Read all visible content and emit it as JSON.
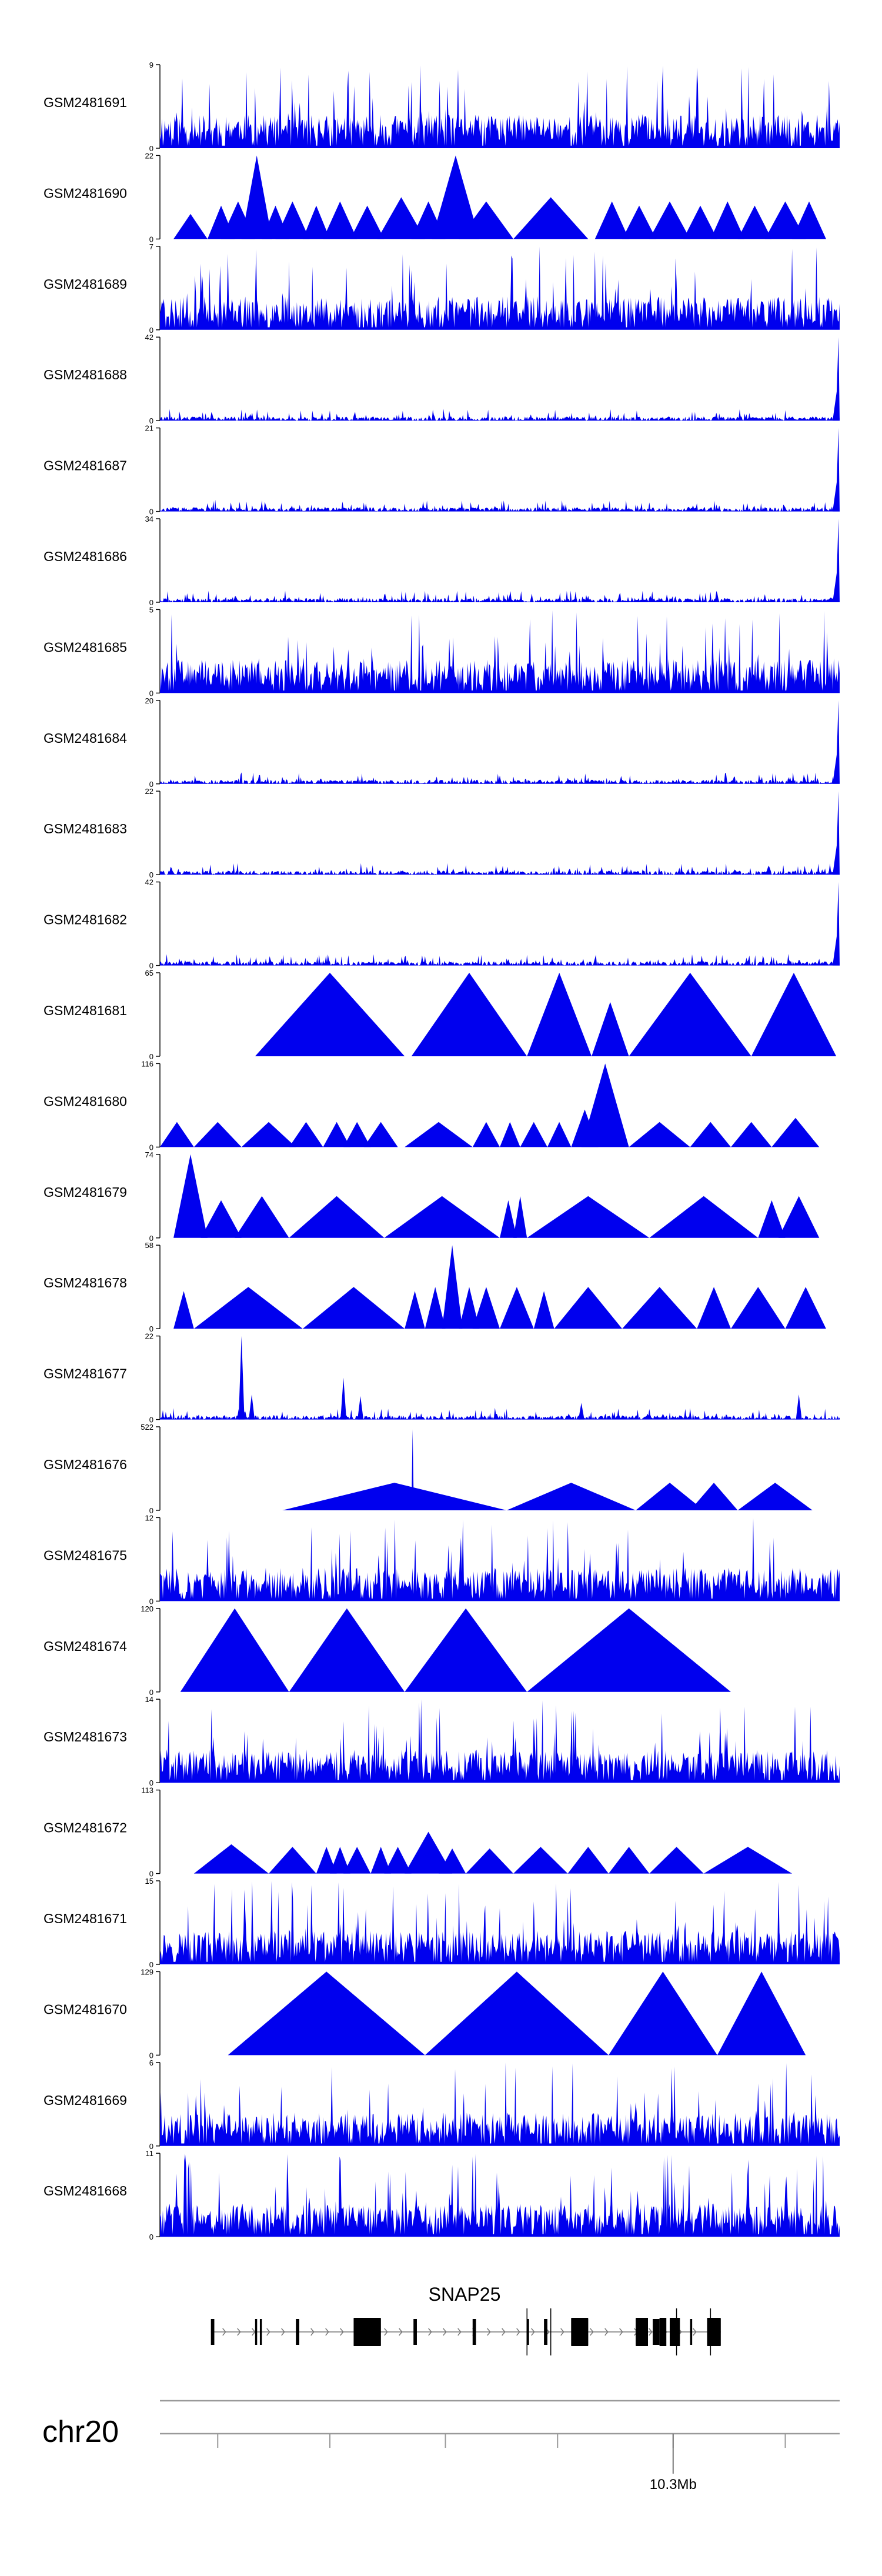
{
  "chart_data": {
    "type": "area",
    "title": "",
    "chromosome": "chr20",
    "fill_color": "#0000ee",
    "tracks": [
      {
        "name": "GSM2481691",
        "ymax": 9,
        "style": "dense",
        "seed": 11,
        "spike": null
      },
      {
        "name": "GSM2481690",
        "ymax": 22,
        "style": "sparse",
        "peaks": [
          [
            0.02,
            0.07,
            0.3
          ],
          [
            0.07,
            0.11,
            0.4
          ],
          [
            0.09,
            0.14,
            0.45
          ],
          [
            0.12,
            0.165,
            1.0
          ],
          [
            0.15,
            0.19,
            0.4
          ],
          [
            0.17,
            0.22,
            0.45
          ],
          [
            0.21,
            0.25,
            0.4
          ],
          [
            0.24,
            0.29,
            0.45
          ],
          [
            0.28,
            0.33,
            0.4
          ],
          [
            0.32,
            0.39,
            0.5
          ],
          [
            0.37,
            0.42,
            0.45
          ],
          [
            0.4,
            0.47,
            1.0
          ],
          [
            0.44,
            0.52,
            0.45
          ],
          [
            0.52,
            0.63,
            0.5
          ],
          [
            0.64,
            0.69,
            0.45
          ],
          [
            0.68,
            0.73,
            0.4
          ],
          [
            0.72,
            0.78,
            0.45
          ],
          [
            0.77,
            0.82,
            0.4
          ],
          [
            0.81,
            0.86,
            0.45
          ],
          [
            0.85,
            0.9,
            0.4
          ],
          [
            0.89,
            0.95,
            0.45
          ],
          [
            0.93,
            0.98,
            0.45
          ]
        ]
      },
      {
        "name": "GSM2481689",
        "ymax": 7,
        "style": "dense",
        "seed": 23,
        "spike": null
      },
      {
        "name": "GSM2481688",
        "ymax": 42,
        "style": "low",
        "seed": 31,
        "spike": 1.0
      },
      {
        "name": "GSM2481687",
        "ymax": 21,
        "style": "low",
        "seed": 37,
        "spike": 1.0
      },
      {
        "name": "GSM2481686",
        "ymax": 34,
        "style": "low",
        "seed": 41,
        "spike": 1.0
      },
      {
        "name": "GSM2481685",
        "ymax": 5,
        "style": "dense",
        "seed": 47,
        "spike": null
      },
      {
        "name": "GSM2481684",
        "ymax": 20,
        "style": "low",
        "seed": 53,
        "spike": 1.0
      },
      {
        "name": "GSM2481683",
        "ymax": 22,
        "style": "low",
        "seed": 59,
        "spike": 1.0
      },
      {
        "name": "GSM2481682",
        "ymax": 42,
        "style": "low",
        "seed": 61,
        "spike": 1.0
      },
      {
        "name": "GSM2481681",
        "ymax": 65,
        "style": "sparse",
        "peaks": [
          [
            0.14,
            0.36,
            1.0
          ],
          [
            0.37,
            0.54,
            1.0
          ],
          [
            0.54,
            0.635,
            1.0
          ],
          [
            0.635,
            0.69,
            0.65
          ],
          [
            0.69,
            0.87,
            1.0
          ],
          [
            0.87,
            0.995,
            1.0
          ]
        ]
      },
      {
        "name": "GSM2481680",
        "ymax": 116,
        "style": "sparse",
        "peaks": [
          [
            0.0,
            0.05,
            0.3
          ],
          [
            0.05,
            0.12,
            0.3
          ],
          [
            0.12,
            0.2,
            0.3
          ],
          [
            0.19,
            0.24,
            0.3
          ],
          [
            0.24,
            0.28,
            0.3
          ],
          [
            0.27,
            0.31,
            0.3
          ],
          [
            0.3,
            0.35,
            0.3
          ],
          [
            0.36,
            0.46,
            0.3
          ],
          [
            0.46,
            0.5,
            0.3
          ],
          [
            0.5,
            0.53,
            0.3
          ],
          [
            0.53,
            0.57,
            0.3
          ],
          [
            0.57,
            0.605,
            0.3
          ],
          [
            0.605,
            0.645,
            0.45
          ],
          [
            0.62,
            0.69,
            1.0
          ],
          [
            0.69,
            0.78,
            0.3
          ],
          [
            0.78,
            0.84,
            0.3
          ],
          [
            0.84,
            0.9,
            0.3
          ],
          [
            0.9,
            0.97,
            0.35
          ]
        ]
      },
      {
        "name": "GSM2481679",
        "ymax": 74,
        "style": "sparse",
        "peaks": [
          [
            0.02,
            0.07,
            1.0
          ],
          [
            0.06,
            0.12,
            0.45
          ],
          [
            0.11,
            0.19,
            0.5
          ],
          [
            0.19,
            0.33,
            0.5
          ],
          [
            0.33,
            0.5,
            0.5
          ],
          [
            0.5,
            0.525,
            0.45
          ],
          [
            0.52,
            0.54,
            0.5
          ],
          [
            0.54,
            0.72,
            0.5
          ],
          [
            0.72,
            0.88,
            0.5
          ],
          [
            0.88,
            0.92,
            0.45
          ],
          [
            0.91,
            0.97,
            0.5
          ]
        ]
      },
      {
        "name": "GSM2481678",
        "ymax": 58,
        "style": "sparse",
        "peaks": [
          [
            0.02,
            0.05,
            0.45
          ],
          [
            0.05,
            0.21,
            0.5
          ],
          [
            0.21,
            0.36,
            0.5
          ],
          [
            0.36,
            0.39,
            0.45
          ],
          [
            0.39,
            0.42,
            0.5
          ],
          [
            0.415,
            0.445,
            1.0
          ],
          [
            0.44,
            0.47,
            0.5
          ],
          [
            0.46,
            0.5,
            0.5
          ],
          [
            0.5,
            0.55,
            0.5
          ],
          [
            0.55,
            0.58,
            0.45
          ],
          [
            0.58,
            0.68,
            0.5
          ],
          [
            0.68,
            0.79,
            0.5
          ],
          [
            0.79,
            0.84,
            0.5
          ],
          [
            0.84,
            0.92,
            0.5
          ],
          [
            0.92,
            0.98,
            0.5
          ]
        ]
      },
      {
        "name": "GSM2481677",
        "ymax": 22,
        "style": "lowpeaks",
        "seed": 71,
        "spikes": [
          [
            0.12,
            1.0
          ],
          [
            0.135,
            0.3
          ],
          [
            0.27,
            0.5
          ],
          [
            0.295,
            0.28
          ],
          [
            0.62,
            0.2
          ],
          [
            0.94,
            0.3
          ]
        ]
      },
      {
        "name": "GSM2481676",
        "ymax": 522,
        "style": "sparse",
        "peaks": [
          [
            0.18,
            0.51,
            0.33
          ],
          [
            0.37,
            0.3735,
            0.97
          ],
          [
            0.51,
            0.7,
            0.33
          ],
          [
            0.7,
            0.8,
            0.33
          ],
          [
            0.78,
            0.85,
            0.33
          ],
          [
            0.85,
            0.96,
            0.33
          ]
        ]
      },
      {
        "name": "GSM2481675",
        "ymax": 12,
        "style": "dense",
        "seed": 83,
        "spike": null
      },
      {
        "name": "GSM2481674",
        "ymax": 120,
        "style": "sparse",
        "peaks": [
          [
            0.03,
            0.19,
            1.0
          ],
          [
            0.19,
            0.36,
            1.0
          ],
          [
            0.36,
            0.54,
            1.0
          ],
          [
            0.54,
            0.84,
            1.0
          ]
        ]
      },
      {
        "name": "GSM2481673",
        "ymax": 14,
        "style": "dense",
        "seed": 89,
        "spike": null
      },
      {
        "name": "GSM2481672",
        "ymax": 113,
        "style": "sparse",
        "peaks": [
          [
            0.05,
            0.16,
            0.35
          ],
          [
            0.16,
            0.23,
            0.32
          ],
          [
            0.23,
            0.26,
            0.32
          ],
          [
            0.25,
            0.28,
            0.32
          ],
          [
            0.27,
            0.31,
            0.32
          ],
          [
            0.31,
            0.34,
            0.32
          ],
          [
            0.33,
            0.37,
            0.32
          ],
          [
            0.36,
            0.43,
            0.5
          ],
          [
            0.41,
            0.45,
            0.3
          ],
          [
            0.45,
            0.52,
            0.3
          ],
          [
            0.52,
            0.6,
            0.32
          ],
          [
            0.6,
            0.66,
            0.32
          ],
          [
            0.66,
            0.72,
            0.32
          ],
          [
            0.72,
            0.8,
            0.32
          ],
          [
            0.8,
            0.93,
            0.32
          ]
        ]
      },
      {
        "name": "GSM2481671",
        "ymax": 15,
        "style": "dense",
        "seed": 97,
        "spike": null
      },
      {
        "name": "GSM2481670",
        "ymax": 129,
        "style": "sparse",
        "peaks": [
          [
            0.1,
            0.39,
            1.0
          ],
          [
            0.39,
            0.66,
            1.0
          ],
          [
            0.66,
            0.82,
            1.0
          ],
          [
            0.82,
            0.95,
            1.0
          ]
        ]
      },
      {
        "name": "GSM2481669",
        "ymax": 6,
        "style": "dense",
        "seed": 101,
        "spike": null
      },
      {
        "name": "GSM2481668",
        "ymax": 11,
        "style": "dense",
        "seed": 103,
        "spike": null
      }
    ],
    "gene": {
      "name": "SNAP25",
      "exons": [
        [
          0.075,
          0.08
        ],
        [
          0.14,
          0.143
        ],
        [
          0.147,
          0.15
        ],
        [
          0.2,
          0.205
        ],
        [
          0.285,
          0.325
        ],
        [
          0.373,
          0.378
        ],
        [
          0.46,
          0.465
        ],
        [
          0.54,
          0.543
        ],
        [
          0.565,
          0.57
        ],
        [
          0.605,
          0.63
        ],
        [
          0.7,
          0.71
        ],
        [
          0.71,
          0.718
        ],
        [
          0.725,
          0.735
        ],
        [
          0.75,
          0.76
        ],
        [
          0.78,
          0.783
        ],
        [
          0.805,
          0.825
        ]
      ],
      "thick_exons": [
        [
          0.285,
          0.325
        ],
        [
          0.605,
          0.63
        ],
        [
          0.7,
          0.718
        ],
        [
          0.735,
          0.745
        ],
        [
          0.75,
          0.765
        ],
        [
          0.805,
          0.825
        ]
      ],
      "start": 0.075,
      "end": 0.825
    },
    "axis": {
      "label": "10.3Mb",
      "label_pos": 0.755,
      "ticks": [
        0.085,
        0.25,
        0.42,
        0.585,
        0.755,
        0.92
      ]
    }
  }
}
